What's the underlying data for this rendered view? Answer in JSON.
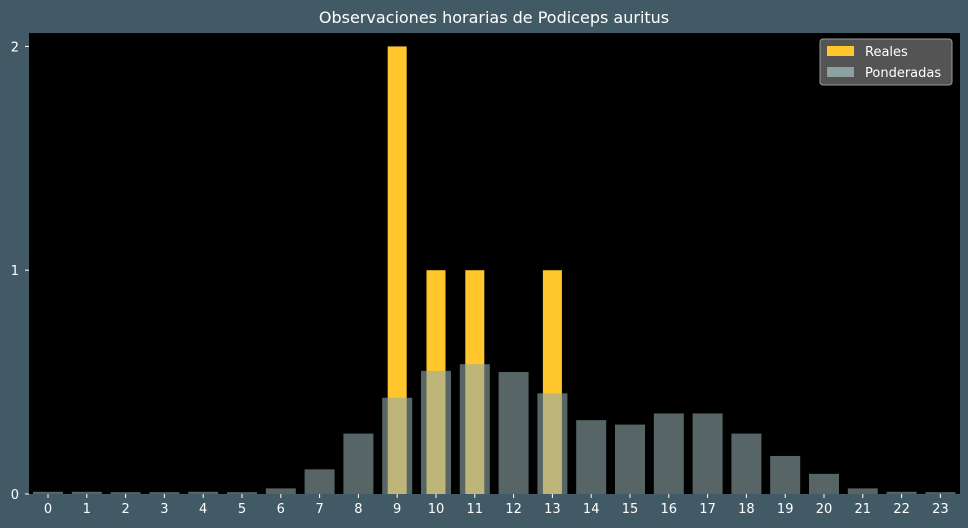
{
  "chart_data": {
    "type": "bar",
    "title": "Observaciones horarias de Podiceps auritus",
    "xlabel": "",
    "ylabel": "",
    "categories": [
      "0",
      "1",
      "2",
      "3",
      "4",
      "5",
      "6",
      "7",
      "8",
      "9",
      "10",
      "11",
      "12",
      "13",
      "14",
      "15",
      "16",
      "17",
      "18",
      "19",
      "20",
      "21",
      "22",
      "23"
    ],
    "ylim": [
      0,
      2.06
    ],
    "yticks": [
      0,
      1,
      2
    ],
    "grid": false,
    "legend_position": "top-right",
    "series": [
      {
        "name": "Reales",
        "color": "#ffc72c",
        "values": [
          0,
          0,
          0,
          0,
          0,
          0,
          0,
          0,
          0,
          2,
          1,
          1,
          0,
          1,
          0,
          0,
          0,
          0,
          0,
          0,
          0,
          0,
          0,
          0
        ]
      },
      {
        "name": "Ponderadas",
        "color": "#93a9ab",
        "opacity": 0.6,
        "values": [
          0.01,
          0.01,
          0.008,
          0.008,
          0.01,
          0.008,
          0.025,
          0.11,
          0.27,
          0.43,
          0.55,
          0.58,
          0.545,
          0.45,
          0.33,
          0.31,
          0.36,
          0.36,
          0.27,
          0.17,
          0.09,
          0.025,
          0.01,
          0.008
        ]
      }
    ],
    "colors": {
      "background": "#425a66",
      "plot_background": "#000000",
      "text": "#ffffff"
    }
  }
}
